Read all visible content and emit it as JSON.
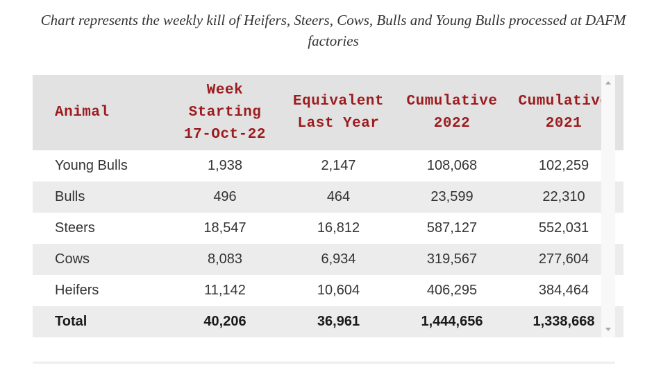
{
  "caption": "Chart represents the weekly kill of Heifers, Steers, Cows, Bulls and Young Bulls processed at DAFM factories",
  "table": {
    "headers": [
      [
        "Animal"
      ],
      [
        "Week",
        "Starting",
        "17-Oct-22"
      ],
      [
        "Equivalent",
        "Last Year"
      ],
      [
        "Cumulative",
        "2022"
      ],
      [
        "Cumulative",
        "2021"
      ]
    ],
    "rows": [
      [
        "Young Bulls",
        "1,938",
        "2,147",
        "108,068",
        "102,259"
      ],
      [
        "Bulls",
        "496",
        "464",
        "23,599",
        "22,310"
      ],
      [
        "Steers",
        "18,547",
        "16,812",
        "587,127",
        "552,031"
      ],
      [
        "Cows",
        "8,083",
        "6,934",
        "319,567",
        "277,604"
      ],
      [
        "Heifers",
        "11,142",
        "10,604",
        "406,295",
        "384,464"
      ]
    ],
    "total": [
      "Total",
      "40,206",
      "36,961",
      "1,444,656",
      "1,338,668"
    ]
  },
  "colors": {
    "header_text": "#9b1b1e",
    "header_bg": "#e2e2e2",
    "stripe_bg": "#ececec"
  },
  "icons": {
    "scroll_up": "triangle-up-icon",
    "scroll_down": "triangle-down-icon"
  }
}
